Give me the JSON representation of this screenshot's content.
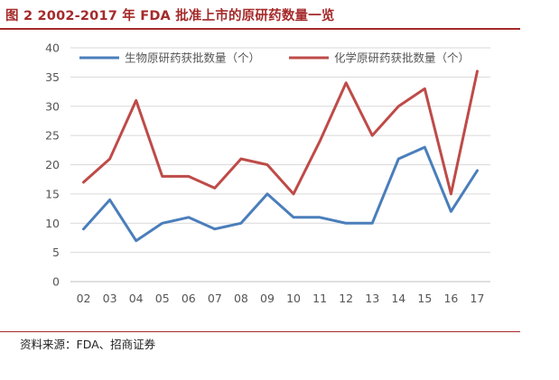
{
  "figure": {
    "title": "图 2 2002-2017 年 FDA 批准上市的原研药数量一览",
    "source": "资料来源：FDA、招商证券"
  },
  "colors": {
    "accent": "#a52a2a",
    "series_blue": "#4a7ebb",
    "series_red": "#be4b48",
    "grid": "#d9d9d9"
  },
  "chart_data": {
    "type": "line",
    "categories": [
      "02",
      "03",
      "04",
      "05",
      "06",
      "07",
      "08",
      "09",
      "10",
      "11",
      "12",
      "13",
      "14",
      "15",
      "16",
      "17"
    ],
    "series": [
      {
        "name": "生物原研药获批数量（个）",
        "values": [
          9,
          14,
          7,
          10,
          11,
          9,
          10,
          15,
          11,
          11,
          10,
          10,
          21,
          23,
          12,
          19
        ]
      },
      {
        "name": "化学原研药获批数量（个）",
        "values": [
          17,
          21,
          31,
          18,
          18,
          16,
          21,
          20,
          15,
          24,
          34,
          25,
          30,
          33,
          15,
          36
        ]
      }
    ],
    "ylim": [
      0,
      40
    ],
    "yticks": [
      "0",
      "5",
      "10",
      "15",
      "20",
      "25",
      "30",
      "35",
      "40"
    ],
    "grid": true,
    "legend": "top"
  }
}
